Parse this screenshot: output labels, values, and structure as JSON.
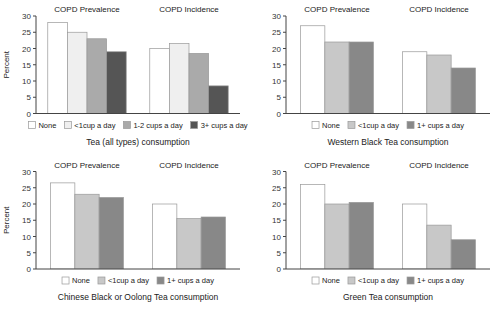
{
  "chart_data": [
    {
      "type": "bar",
      "xlabel": "Tea (all types) consumption",
      "ylabel": "Percent",
      "categories": [
        "COPD Prevalence",
        "COPD Incidence"
      ],
      "series": [
        {
          "name": "None",
          "color": "#FFFFFF",
          "values": [
            28,
            20
          ]
        },
        {
          "name": "<1cup a day",
          "color": "#EFEFEF",
          "values": [
            25,
            21.5
          ]
        },
        {
          "name": "1-2 cups a day",
          "color": "#AAAAAA",
          "values": [
            23,
            18.5
          ]
        },
        {
          "name": "3+ cups a day",
          "color": "#555555",
          "values": [
            19,
            8.5
          ]
        }
      ],
      "ylim": [
        0,
        30
      ],
      "yticks": [
        0,
        5,
        10,
        15,
        20,
        25,
        30
      ],
      "grid": false,
      "legend": "lower center"
    },
    {
      "type": "bar",
      "xlabel": "Western Black Tea consumption",
      "categories": [
        "COPD Prevalence",
        "COPD Incidence"
      ],
      "series": [
        {
          "name": "None",
          "color": "#FFFFFF",
          "values": [
            27,
            19
          ]
        },
        {
          "name": "<1cup a day",
          "color": "#C8C8C8",
          "values": [
            22,
            18
          ]
        },
        {
          "name": "1+ cups a day",
          "color": "#888888",
          "values": [
            22,
            14
          ]
        }
      ],
      "ylim": [
        0,
        30
      ],
      "yticks": [
        0,
        5,
        10,
        15,
        20,
        25,
        30
      ],
      "grid": false,
      "legend": "lower center"
    },
    {
      "type": "bar",
      "xlabel": "Chinese Black or Oolong Tea consumption",
      "ylabel": "Percent",
      "categories": [
        "COPD Prevalence",
        "COPD Incidence"
      ],
      "series": [
        {
          "name": "None",
          "color": "#FFFFFF",
          "values": [
            26.5,
            20
          ]
        },
        {
          "name": "<1cup a day",
          "color": "#C8C8C8",
          "values": [
            23,
            15.5
          ]
        },
        {
          "name": "1+ cups a day",
          "color": "#888888",
          "values": [
            22,
            16
          ]
        }
      ],
      "ylim": [
        0,
        30
      ],
      "yticks": [
        0,
        5,
        10,
        15,
        20,
        25,
        30
      ],
      "grid": false,
      "legend": "lower center"
    },
    {
      "type": "bar",
      "xlabel": "Green  Tea consumption",
      "categories": [
        "COPD Prevalence",
        "COPD Incidence"
      ],
      "series": [
        {
          "name": "None",
          "color": "#FFFFFF",
          "values": [
            26,
            20
          ]
        },
        {
          "name": "<1cup a day",
          "color": "#C8C8C8",
          "values": [
            20,
            13.5
          ]
        },
        {
          "name": "1+ cups a day",
          "color": "#888888",
          "values": [
            20.5,
            9
          ]
        }
      ],
      "ylim": [
        0,
        30
      ],
      "yticks": [
        0,
        5,
        10,
        15,
        20,
        25,
        30
      ],
      "grid": false,
      "legend": "lower center"
    }
  ]
}
